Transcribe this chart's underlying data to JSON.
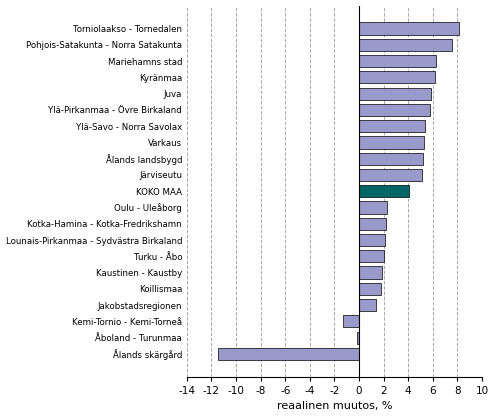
{
  "categories": [
    "Torniolaakso - Tornedalen",
    "Pohjois-Satakunta - Norra Satakunta",
    "Mariehamns stad",
    "Kyränmaa",
    "Juva",
    "Ylä-Pirkanmaa - Övre Birkaland",
    "Ylä-Savo - Norra Savolax",
    "Varkaus",
    "Ålands landsbygd",
    "Järviseutu",
    "KOKO MAA",
    "Oulu - Uleåborg",
    "Kotka-Hamina - Kotka-Fredrikshamn",
    "Lounais-Pirkanmaa - Sydvästra Birkaland",
    "Turku - Åbo",
    "Kaustinen - Kaustby",
    "Koillismaa",
    "Jakobstadsregionen",
    "Kemi-Tornio - Kemi-Torneå",
    "Åboland - Turunmaa",
    "Ålands skärgård"
  ],
  "values": [
    8.1,
    7.6,
    6.3,
    6.2,
    5.9,
    5.8,
    5.4,
    5.3,
    5.2,
    5.1,
    4.1,
    2.3,
    2.2,
    2.1,
    2.0,
    1.9,
    1.8,
    1.4,
    -1.3,
    -0.2,
    -11.5
  ],
  "bar_colors": [
    "#9999cc",
    "#9999cc",
    "#9999cc",
    "#9999cc",
    "#9999cc",
    "#9999cc",
    "#9999cc",
    "#9999cc",
    "#9999cc",
    "#9999cc",
    "#006666",
    "#9999cc",
    "#9999cc",
    "#9999cc",
    "#9999cc",
    "#9999cc",
    "#9999cc",
    "#9999cc",
    "#9999cc",
    "#9999cc",
    "#9999cc"
  ],
  "xlabel": "reaalinen muutos, %",
  "xlim": [
    -14,
    10
  ],
  "xticks": [
    -14,
    -12,
    -10,
    -8,
    -6,
    -4,
    -2,
    0,
    2,
    4,
    6,
    8,
    10
  ],
  "xtick_labels": [
    "-14",
    "-12",
    "-10",
    "-8",
    "-6",
    "-4",
    "-2",
    "0",
    "2",
    "4",
    "6",
    "8",
    "10"
  ],
  "grid_color": "#aaaaaa",
  "background_color": "#ffffff",
  "bar_edge_color": "#000000",
  "bar_linewidth": 0.5,
  "figsize": [
    4.94,
    4.17
  ],
  "dpi": 100
}
